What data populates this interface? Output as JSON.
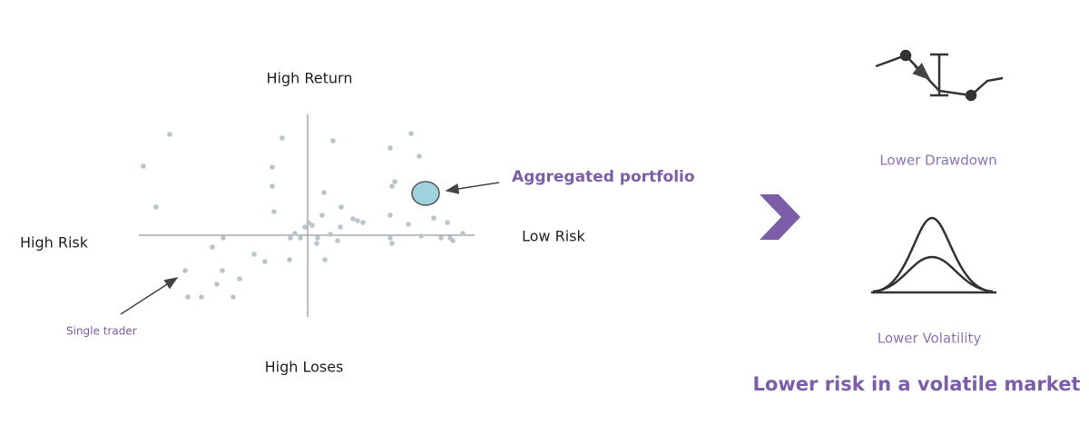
{
  "scatter": {
    "top_label": "High Return",
    "left_label": "High Risk",
    "right_label": "Low Risk",
    "bottom_label": "High Loses",
    "portfolio_label": "Aggregated portfolio",
    "trader_label": "Single trader"
  },
  "benefits": {
    "drawdown_label": "Lower Drawdown",
    "volatility_label": "Lower Volatility",
    "headline": "Lower risk in a volatile market"
  }
}
